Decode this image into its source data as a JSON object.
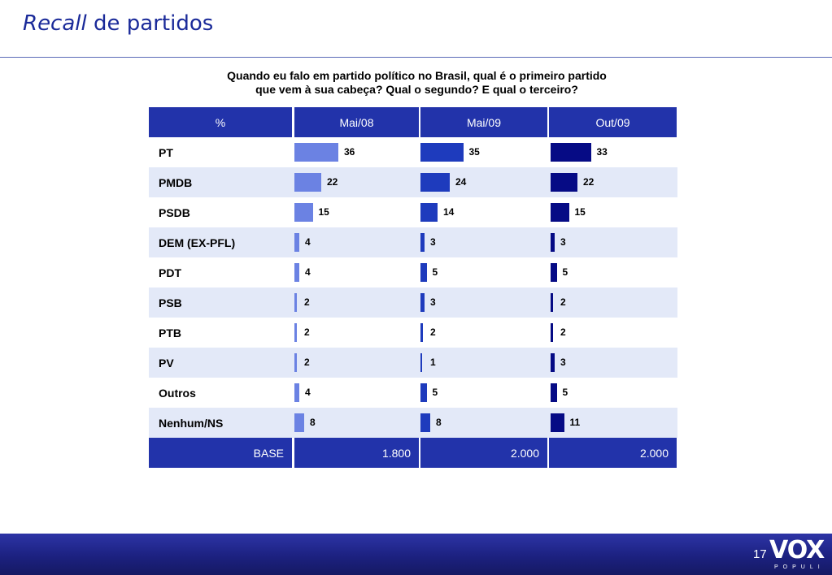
{
  "title": {
    "italic": "Recall",
    "rest": "de partidos"
  },
  "question": {
    "line1": "Quando eu falo em partido político no Brasil, qual é o primeiro partido",
    "line2": "que vem à sua cabeça? Qual o segundo? E qual o terceiro?"
  },
  "colors": {
    "header": "#2233aa",
    "stripe": "#e3e9f8",
    "series": [
      "#6b82e3",
      "#1e3bbd",
      "#060b85"
    ]
  },
  "chart_data": {
    "type": "table",
    "corner_label": "%",
    "categories": [
      "PT",
      "PMDB",
      "PSDB",
      "DEM (EX-PFL)",
      "PDT",
      "PSB",
      "PTB",
      "PV",
      "Outros",
      "Nenhum/NS"
    ],
    "series": [
      {
        "name": "Mai/08",
        "values": [
          36,
          22,
          15,
          4,
          4,
          2,
          2,
          2,
          4,
          8
        ]
      },
      {
        "name": "Mai/09",
        "values": [
          35,
          24,
          14,
          3,
          5,
          3,
          2,
          1,
          5,
          8
        ]
      },
      {
        "name": "Out/09",
        "values": [
          33,
          22,
          15,
          3,
          5,
          2,
          2,
          3,
          5,
          11
        ]
      }
    ],
    "base_label": "BASE",
    "base": [
      "1.800",
      "2.000",
      "2.000"
    ]
  },
  "footer": {
    "page": "17",
    "logo": "VOX",
    "logo_sub": "POPULI"
  }
}
